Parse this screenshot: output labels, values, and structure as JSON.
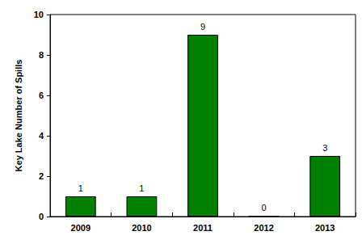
{
  "chart_data": {
    "type": "bar",
    "ylabel": "Key Lake Number of Spills",
    "categories": [
      "2009",
      "2010",
      "2011",
      "2012",
      "2013"
    ],
    "values": [
      1,
      1,
      9,
      0,
      3
    ],
    "color": "#008000",
    "ylim": [
      0,
      10
    ],
    "yticks": [
      0,
      2,
      4,
      6,
      8,
      10
    ],
    "grid": false,
    "data_labels": true
  }
}
